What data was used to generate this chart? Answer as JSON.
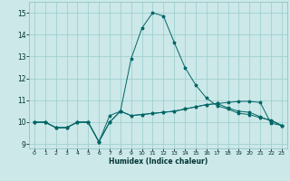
{
  "xlabel": "Humidex (Indice chaleur)",
  "bg_color": "#cce8e8",
  "grid_color": "#99cccc",
  "line_color": "#006666",
  "xlim": [
    -0.5,
    23.5
  ],
  "ylim": [
    8.8,
    15.5
  ],
  "yticks": [
    9,
    10,
    11,
    12,
    13,
    14,
    15
  ],
  "xticks": [
    0,
    1,
    2,
    3,
    4,
    5,
    6,
    7,
    8,
    9,
    10,
    11,
    12,
    13,
    14,
    15,
    16,
    17,
    18,
    19,
    20,
    21,
    22,
    23
  ],
  "series_peak_x": [
    0,
    1,
    2,
    3,
    4,
    5,
    6,
    7,
    8,
    9,
    10,
    11,
    12,
    13,
    14,
    15,
    16,
    17,
    18,
    19,
    20,
    21,
    22,
    23
  ],
  "series_peak_y": [
    10.0,
    10.0,
    9.75,
    9.75,
    10.0,
    10.0,
    9.1,
    10.3,
    10.5,
    12.9,
    14.3,
    15.0,
    14.85,
    13.65,
    12.5,
    11.7,
    11.1,
    10.75,
    10.6,
    10.4,
    10.35,
    10.2,
    10.1,
    9.85
  ],
  "series_mid_x": [
    0,
    1,
    2,
    3,
    4,
    5,
    6,
    7,
    8,
    9,
    10,
    11,
    12,
    13,
    14,
    15,
    16,
    17,
    18,
    19,
    20,
    21,
    22,
    23
  ],
  "series_mid_y": [
    10.0,
    10.0,
    9.75,
    9.75,
    10.0,
    10.0,
    9.1,
    10.0,
    10.5,
    10.3,
    10.35,
    10.4,
    10.45,
    10.5,
    10.6,
    10.7,
    10.8,
    10.85,
    10.65,
    10.5,
    10.45,
    10.25,
    10.05,
    9.85
  ],
  "series_flat_x": [
    0,
    1,
    2,
    3,
    4,
    5,
    6,
    7,
    8,
    9,
    10,
    11,
    12,
    13,
    14,
    15,
    16,
    17,
    18,
    19,
    20,
    21,
    22,
    23
  ],
  "series_flat_y": [
    10.0,
    10.0,
    9.75,
    9.75,
    10.0,
    10.0,
    9.1,
    10.0,
    10.5,
    10.3,
    10.35,
    10.4,
    10.45,
    10.5,
    10.6,
    10.7,
    10.8,
    10.85,
    10.9,
    10.95,
    10.95,
    10.9,
    9.95,
    9.85
  ]
}
